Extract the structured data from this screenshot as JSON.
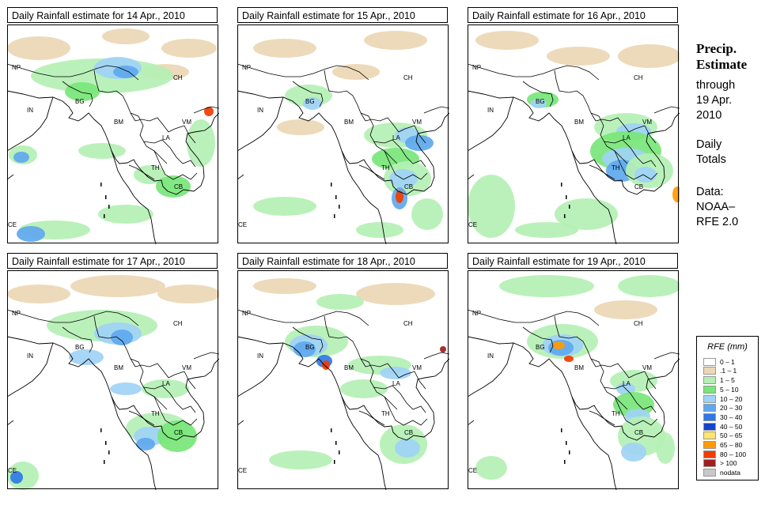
{
  "panels": [
    {
      "title": "Daily Rainfall estimate for  14 Apr., 2010",
      "day": "14",
      "labels": [
        "NP",
        "CH",
        "IN",
        "BG",
        "BM",
        "VM",
        "LA",
        "TH",
        "CB",
        "CE"
      ]
    },
    {
      "title": "Daily Rainfall estimate for  15 Apr., 2010",
      "day": "15",
      "labels": [
        "NP",
        "CH",
        "IN",
        "BG",
        "BM",
        "VM",
        "LA",
        "TH",
        "CB",
        "CE"
      ]
    },
    {
      "title": "Daily Rainfall estimate for  16 Apr., 2010",
      "day": "16",
      "labels": [
        "NP",
        "CH",
        "IN",
        "BG",
        "BM",
        "VM",
        "LA",
        "TH",
        "CB",
        "CE"
      ]
    },
    {
      "title": "Daily Rainfall estimate for  17 Apr., 2010",
      "day": "17",
      "labels": [
        "NP",
        "CH",
        "IN",
        "BG",
        "BM",
        "VM",
        "LA",
        "TH",
        "CB",
        "CE"
      ]
    },
    {
      "title": "Daily Rainfall estimate for  18 Apr., 2010",
      "day": "18",
      "labels": [
        "NP",
        "CH",
        "IN",
        "BG",
        "BM",
        "VM",
        "LA",
        "TH",
        "CB",
        "CE"
      ]
    },
    {
      "title": "Daily Rainfall estimate for  19 Apr., 2010",
      "day": "19",
      "labels": [
        "NP",
        "CH",
        "IN",
        "BG",
        "BM",
        "VM",
        "LA",
        "TH",
        "CB",
        "CE"
      ]
    }
  ],
  "side": {
    "heading_1": "Precip.",
    "heading_2": "Estimate",
    "through_1": "through",
    "through_2": "19 Apr.",
    "through_3": "2010",
    "totals_1": "Daily",
    "totals_2": "Totals",
    "data_1": "Data:",
    "data_2": "NOAA–",
    "data_3": "RFE 2.0"
  },
  "legend": {
    "title": "RFE (mm)",
    "items": [
      {
        "label": "0 – 1",
        "color": "#ffffff"
      },
      {
        "label": ".1 – 1",
        "color": "#ecd7b4"
      },
      {
        "label": "1 – 5",
        "color": "#b4f0b4"
      },
      {
        "label": "5 – 10",
        "color": "#78e678"
      },
      {
        "label": "10 – 20",
        "color": "#a0d2f5"
      },
      {
        "label": "20 – 30",
        "color": "#5fa8ee"
      },
      {
        "label": "30 – 40",
        "color": "#2f78e6"
      },
      {
        "label": "40 – 50",
        "color": "#1444cc"
      },
      {
        "label": "50 – 65",
        "color": "#ffe66e"
      },
      {
        "label": "65 – 80",
        "color": "#ff9b00"
      },
      {
        "label": "80 – 100",
        "color": "#f03c00"
      },
      {
        "label": "> 100",
        "color": "#a01e1e"
      },
      {
        "label": "nodata",
        "color": "#c8c8c8"
      }
    ]
  }
}
